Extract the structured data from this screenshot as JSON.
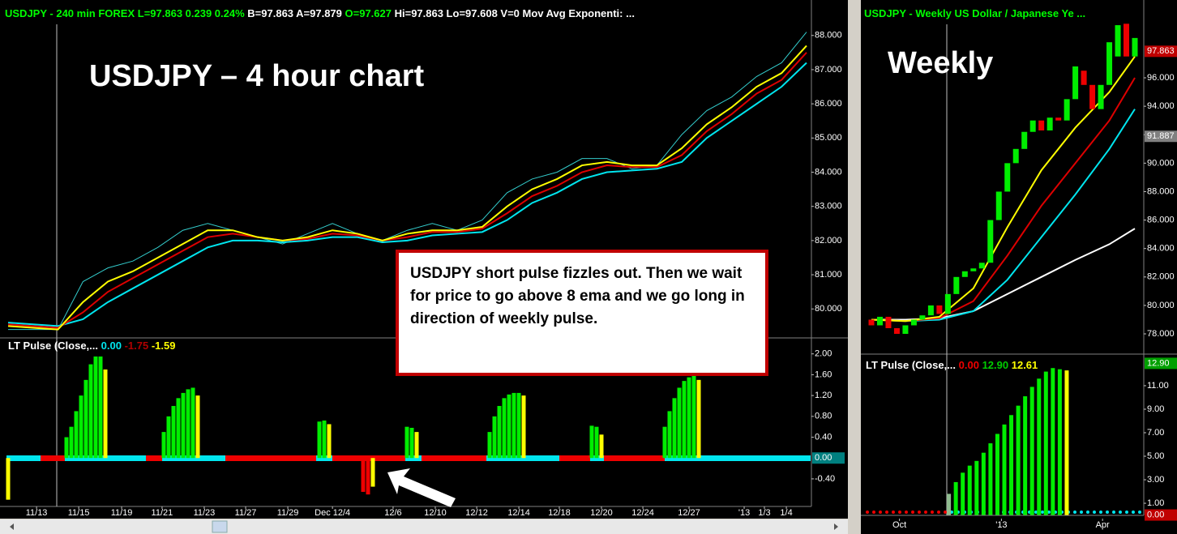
{
  "chart_data": [
    {
      "type": "line",
      "header": [
        {
          "text": "USDJPY - 240 min  FOREX  L=97.863  0.239  0.24%",
          "color": "#00ff00"
        },
        {
          "text": "  B=97.863  A=97.879",
          "color": "#ffffff"
        },
        {
          "text": "  O=97.627",
          "color": "#00ff00"
        },
        {
          "text": "  Hi=97.863  Lo=97.608  V=0  Mov Avg Exponenti: ...",
          "color": "#ffffff"
        }
      ],
      "label": "USDJPY – 4 hour chart",
      "annotation": "USDJPY short pulse fizzles out. Then we wait for price to go above 8 ema and we go long in direction of weekly pulse.",
      "x": [
        0,
        1,
        2,
        3,
        4,
        5,
        6,
        7,
        8,
        9,
        10,
        11,
        12,
        13,
        14,
        15,
        16,
        17,
        18,
        19,
        20,
        21,
        22,
        23,
        24,
        25,
        26,
        27,
        28,
        29,
        30,
        31,
        32
      ],
      "xlim": [
        0,
        32
      ],
      "xticks": [
        {
          "value": 1.14,
          "label": "11/13"
        },
        {
          "value": 2.83,
          "label": "11/15"
        },
        {
          "value": 4.55,
          "label": "11/19"
        },
        {
          "value": 6.17,
          "label": "11/21"
        },
        {
          "value": 7.86,
          "label": "11/23"
        },
        {
          "value": 9.52,
          "label": "11/27"
        },
        {
          "value": 11.21,
          "label": "11/29"
        },
        {
          "value": 13.0,
          "label": "Dec 12/4"
        },
        {
          "value": 15.43,
          "label": "12/6"
        },
        {
          "value": 17.12,
          "label": "12/10"
        },
        {
          "value": 18.78,
          "label": "12/12"
        },
        {
          "value": 20.47,
          "label": "12/14"
        },
        {
          "value": 22.09,
          "label": "12/18"
        },
        {
          "value": 23.78,
          "label": "12/20"
        },
        {
          "value": 25.44,
          "label": "12/24"
        },
        {
          "value": 27.29,
          "label": "12/27"
        },
        {
          "value": 29.5,
          "label": "'13"
        },
        {
          "value": 30.31,
          "label": "1/3"
        },
        {
          "value": 31.19,
          "label": "1/4"
        }
      ],
      "ylim": [
        79.2,
        88.8
      ],
      "yticks": [
        {
          "value": 80,
          "label": "80.000"
        },
        {
          "value": 81,
          "label": "81.000"
        },
        {
          "value": 82,
          "label": "82.000"
        },
        {
          "value": 83,
          "label": "83.000"
        },
        {
          "value": 84,
          "label": "84.000"
        },
        {
          "value": 85,
          "label": "85.000"
        },
        {
          "value": 86,
          "label": "86.000"
        },
        {
          "value": 87,
          "label": "87.000"
        },
        {
          "value": 88,
          "label": "88.000"
        }
      ],
      "series": [
        {
          "color": "#33cccc",
          "values": [
            79.4,
            79.4,
            79.4,
            80.8,
            81.2,
            81.4,
            81.8,
            82.3,
            82.5,
            82.3,
            82.1,
            81.9,
            82.2,
            82.5,
            82.2,
            82.0,
            82.3,
            82.5,
            82.3,
            82.6,
            83.4,
            83.8,
            84.0,
            84.4,
            84.4,
            84.1,
            84.2,
            85.1,
            85.8,
            86.2,
            86.8,
            87.2,
            88.1
          ]
        },
        {
          "color": "#00e5ee",
          "values": [
            79.6,
            79.55,
            79.5,
            79.7,
            80.2,
            80.6,
            81.0,
            81.4,
            81.8,
            82.0,
            82.0,
            81.95,
            82.0,
            82.1,
            82.1,
            81.95,
            82.0,
            82.15,
            82.2,
            82.25,
            82.6,
            83.1,
            83.4,
            83.8,
            84.0,
            84.05,
            84.1,
            84.3,
            85.0,
            85.5,
            86.0,
            86.5,
            87.2
          ]
        },
        {
          "color": "#dd0000",
          "values": [
            79.55,
            79.5,
            79.45,
            79.9,
            80.5,
            80.9,
            81.3,
            81.7,
            82.1,
            82.2,
            82.1,
            82.0,
            82.05,
            82.2,
            82.15,
            82.0,
            82.1,
            82.25,
            82.25,
            82.35,
            82.8,
            83.3,
            83.6,
            84.0,
            84.2,
            84.15,
            84.15,
            84.5,
            85.2,
            85.7,
            86.3,
            86.7,
            87.5
          ]
        },
        {
          "color": "#ffff00",
          "values": [
            79.5,
            79.45,
            79.4,
            80.2,
            80.8,
            81.1,
            81.5,
            81.9,
            82.3,
            82.3,
            82.1,
            82.0,
            82.1,
            82.3,
            82.2,
            82.0,
            82.2,
            82.3,
            82.3,
            82.4,
            83.0,
            83.5,
            83.8,
            84.2,
            84.3,
            84.2,
            84.2,
            84.7,
            85.4,
            85.9,
            86.5,
            86.9,
            87.7
          ]
        }
      ]
    },
    {
      "type": "bar",
      "legend": [
        {
          "text": "LT Pulse (Close,...",
          "color": "#ffffff"
        },
        {
          "text": "0.00",
          "color": "#00e5ee"
        },
        {
          "text": "-1.75",
          "color": "#b00000"
        },
        {
          "text": "-1.59",
          "color": "#ffff00"
        }
      ],
      "xlim": [
        0,
        165
      ],
      "x": [
        0,
        12,
        13,
        14,
        15,
        16,
        17,
        18,
        19,
        20,
        32,
        33,
        34,
        35,
        36,
        37,
        38,
        39,
        64,
        65,
        66,
        73,
        74,
        75,
        82,
        83,
        84,
        99,
        100,
        101,
        102,
        103,
        104,
        105,
        106,
        120,
        121,
        122,
        135,
        136,
        137,
        138,
        139,
        140,
        141,
        142
      ],
      "values": [
        -0.8,
        0.4,
        0.6,
        0.9,
        1.2,
        1.5,
        1.8,
        1.95,
        1.95,
        1.7,
        0.5,
        0.8,
        1.0,
        1.15,
        1.25,
        1.32,
        1.35,
        1.2,
        0.7,
        0.72,
        0.65,
        -0.65,
        -0.7,
        -0.55,
        0.6,
        0.58,
        0.5,
        0.5,
        0.8,
        1.0,
        1.15,
        1.22,
        1.25,
        1.25,
        1.2,
        0.62,
        0.6,
        0.45,
        0.6,
        0.9,
        1.15,
        1.35,
        1.48,
        1.55,
        1.58,
        1.5
      ],
      "colors": [
        "#ffff00",
        "#00ee00",
        "#00ee00",
        "#00ee00",
        "#00ee00",
        "#00ee00",
        "#00ee00",
        "#00ee00",
        "#00ee00",
        "#ffff00",
        "#00ee00",
        "#00ee00",
        "#00ee00",
        "#00ee00",
        "#00ee00",
        "#00ee00",
        "#00ee00",
        "#ffff00",
        "#00ee00",
        "#00ee00",
        "#ffff00",
        "#ee0000",
        "#ee0000",
        "#ffff00",
        "#00ee00",
        "#00ee00",
        "#ffff00",
        "#00ee00",
        "#00ee00",
        "#00ee00",
        "#00ee00",
        "#00ee00",
        "#00ee00",
        "#00ee00",
        "#ffff00",
        "#00ee00",
        "#00ee00",
        "#ffff00",
        "#00ee00",
        "#00ee00",
        "#00ee00",
        "#00ee00",
        "#00ee00",
        "#00ee00",
        "#00ee00",
        "#ffff00"
      ],
      "ylim": [
        -0.93,
        2.26
      ],
      "yticks": [
        {
          "value": 2,
          "label": "2.00"
        },
        {
          "value": 1.6,
          "label": "1.60"
        },
        {
          "value": 1.2,
          "label": "1.20"
        },
        {
          "value": 0.8,
          "label": "0.80"
        },
        {
          "value": 0.4,
          "label": "0.40"
        },
        {
          "value": -0.4,
          "label": "-0.40"
        }
      ],
      "markers": [
        {
          "value": 0,
          "label": "0.00",
          "color": "#008080"
        }
      ]
    },
    {
      "type": "candlestick",
      "header": [
        {
          "text": "USDJPY - Weekly  US Dollar / Japanese Ye ...",
          "color": "#00ff00"
        }
      ],
      "label": "Weekly",
      "x": [
        0,
        1,
        2,
        3,
        4,
        5,
        6,
        7,
        8,
        9,
        10,
        11,
        12,
        13,
        14,
        15,
        16,
        17,
        18,
        19,
        20,
        21,
        22,
        23,
        24,
        25,
        26,
        27,
        28,
        29,
        30,
        31
      ],
      "open": [
        79.0,
        78.6,
        79.2,
        78.4,
        78.0,
        78.6,
        79.0,
        79.3,
        80.0,
        79.4,
        80.8,
        82.0,
        82.4,
        82.6,
        83.0,
        86.0,
        88.0,
        90.0,
        91.0,
        92.2,
        93.0,
        92.3,
        93.2,
        93.0,
        94.5,
        96.5,
        95.5,
        93.8,
        95.5,
        97.5,
        99.8,
        97.5
      ],
      "close": [
        78.6,
        79.2,
        78.4,
        78.0,
        78.6,
        79.0,
        79.3,
        80.0,
        79.4,
        80.8,
        82.0,
        82.4,
        82.6,
        83.0,
        86.0,
        88.0,
        90.0,
        91.0,
        92.2,
        93.0,
        92.3,
        93.2,
        93.0,
        94.5,
        96.8,
        95.5,
        93.8,
        95.5,
        98.5,
        99.7,
        97.5,
        98.8
      ],
      "up_color": "#00ee00",
      "down_color": "#ee0000",
      "xlim": [
        0,
        31
      ],
      "xticks": [
        {
          "value": 3.3,
          "label": "Oct"
        },
        {
          "value": 15.3,
          "label": "'13"
        },
        {
          "value": 27.2,
          "label": "Apr"
        }
      ],
      "ylim": [
        77.83,
        100.9
      ],
      "yticks": [
        {
          "value": 78,
          "label": "78.000"
        },
        {
          "value": 80,
          "label": "80.000"
        },
        {
          "value": 82,
          "label": "82.000"
        },
        {
          "value": 84,
          "label": "84.000"
        },
        {
          "value": 86,
          "label": "86.000"
        },
        {
          "value": 88,
          "label": "88.000"
        },
        {
          "value": 90,
          "label": "90.000"
        },
        {
          "value": 92,
          "label": "92.000"
        },
        {
          "value": 94,
          "label": "94.000"
        },
        {
          "value": 96,
          "label": "96.000"
        }
      ],
      "markers": [
        {
          "value": 97.863,
          "label": "97.863",
          "color": "#c00000"
        },
        {
          "value": 91.887,
          "label": "91.887",
          "color": "#808080"
        }
      ],
      "series": [
        {
          "color": "#ffffff",
          "x": [
            0,
            4,
            8,
            12,
            16,
            20,
            24,
            28,
            31
          ],
          "values": [
            79,
            79,
            79.1,
            79.6,
            80.8,
            82,
            83.2,
            84.3,
            85.4
          ]
        },
        {
          "color": "#00e5ee",
          "x": [
            0,
            4,
            8,
            12,
            16,
            20,
            24,
            28,
            31
          ],
          "values": [
            79,
            78.9,
            79.0,
            79.6,
            81.8,
            84.8,
            87.8,
            91,
            93.8
          ]
        },
        {
          "color": "#dd0000",
          "x": [
            0,
            4,
            8,
            12,
            16,
            20,
            24,
            28,
            31
          ],
          "values": [
            79,
            78.9,
            79.1,
            80.3,
            83.5,
            87,
            90,
            93,
            96
          ]
        },
        {
          "color": "#ffff00",
          "x": [
            0,
            4,
            8,
            12,
            16,
            20,
            24,
            28,
            31
          ],
          "values": [
            79,
            78.9,
            79.2,
            81.2,
            85.5,
            89.5,
            92.5,
            95,
            97.5
          ]
        }
      ]
    },
    {
      "type": "bar",
      "legend": [
        {
          "text": "LT Pulse (Close,... ",
          "color": "#ffffff"
        },
        {
          "text": "0.00",
          "color": "#ee0000"
        },
        {
          "text": "12.90",
          "color": "#00cc00"
        },
        {
          "text": "12.61",
          "color": "#ffff00"
        }
      ],
      "xlim": [
        0,
        40
      ],
      "x": [
        12,
        13,
        14,
        15,
        16,
        17,
        18,
        19,
        20,
        21,
        22,
        23,
        24,
        25,
        26,
        27,
        28,
        29
      ],
      "values": [
        1.8,
        2.8,
        3.6,
        4.2,
        4.6,
        5.3,
        6.1,
        6.9,
        7.7,
        8.5,
        9.3,
        10.1,
        10.9,
        11.6,
        12.2,
        12.5,
        12.4,
        12.3
      ],
      "colors": [
        "#8fbc8f",
        "#00ee00",
        "#00ee00",
        "#00ee00",
        "#00ee00",
        "#00ee00",
        "#00ee00",
        "#00ee00",
        "#00ee00",
        "#00ee00",
        "#00ee00",
        "#00ee00",
        "#00ee00",
        "#00ee00",
        "#00ee00",
        "#00ee00",
        "#00ee00",
        "#ffff00"
      ],
      "ylim": [
        -0.03,
        13.48
      ],
      "yticks": [
        {
          "value": 1,
          "label": "1.00"
        },
        {
          "value": 3,
          "label": "3.00"
        },
        {
          "value": 5,
          "label": "5.00"
        },
        {
          "value": 7,
          "label": "7.00"
        },
        {
          "value": 9,
          "label": "9.00"
        },
        {
          "value": 11,
          "label": "11.00"
        }
      ],
      "markers": [
        {
          "value": 12.9,
          "label": "12.90",
          "color": "#00a000"
        },
        {
          "value": 0,
          "label": "0.00",
          "color": "#c00000"
        }
      ]
    }
  ]
}
